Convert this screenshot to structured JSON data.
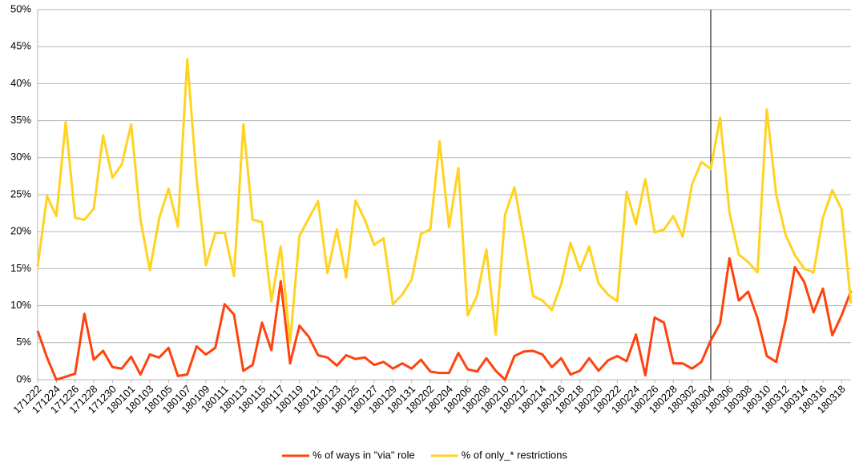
{
  "chart_data": {
    "type": "line",
    "categories": [
      "171222",
      null,
      "171224",
      null,
      "171226",
      null,
      "171228",
      null,
      "171230",
      null,
      "180101",
      null,
      "180103",
      null,
      "180105",
      null,
      "180107",
      null,
      "180109",
      null,
      "180111",
      null,
      "180113",
      null,
      "180115",
      null,
      "180117",
      null,
      "180119",
      null,
      "180121",
      null,
      "180123",
      null,
      "180125",
      null,
      "180127",
      null,
      "180129",
      null,
      "180131",
      null,
      "180202",
      null,
      "180204",
      null,
      "180206",
      null,
      "180208",
      null,
      "180210",
      null,
      "180212",
      null,
      "180214",
      null,
      "180216",
      null,
      "180218",
      null,
      "180220",
      null,
      "180222",
      null,
      "180224",
      null,
      "180226",
      null,
      "180228",
      null,
      "180302",
      null,
      "180304",
      null,
      "180306",
      null,
      "180308",
      null,
      "180310",
      null,
      "180312",
      null,
      "180314",
      null,
      "180316",
      null,
      "180318",
      null
    ],
    "series": [
      {
        "name": "% of ways in \"via\" role",
        "color": "#ff420e",
        "values": [
          6.6,
          3.0,
          0.0,
          0.4,
          0.8,
          8.9,
          2.7,
          3.9,
          1.7,
          1.5,
          3.1,
          0.7,
          3.4,
          3.0,
          4.3,
          0.5,
          0.7,
          4.5,
          3.4,
          4.3,
          10.2,
          8.8,
          1.2,
          2.0,
          7.7,
          4.0,
          13.3,
          2.2,
          7.3,
          5.8,
          3.3,
          3.0,
          1.9,
          3.3,
          2.8,
          3.0,
          2.0,
          2.4,
          1.5,
          2.2,
          1.5,
          2.7,
          1.1,
          0.9,
          0.9,
          3.6,
          1.4,
          1.1,
          2.9,
          1.2,
          0.0,
          3.2,
          3.8,
          3.9,
          3.4,
          1.7,
          2.9,
          0.7,
          1.2,
          2.9,
          1.2,
          2.6,
          3.2,
          2.5,
          6.1,
          0.6,
          8.4,
          7.7,
          2.2,
          2.2,
          1.5,
          2.4,
          5.3,
          7.6,
          16.4,
          10.7,
          11.9,
          8.3,
          3.2,
          2.4,
          8.0,
          15.2,
          13.2,
          9.1,
          12.3,
          6.0,
          8.7,
          12.0
        ]
      },
      {
        "name": "% of only_* restrictions",
        "color": "#ffd320",
        "values": [
          15.3,
          24.8,
          22.1,
          34.8,
          21.9,
          21.6,
          23.1,
          33.0,
          27.3,
          29.1,
          34.5,
          21.6,
          14.8,
          21.8,
          25.8,
          20.7,
          43.3,
          27.2,
          15.5,
          19.8,
          19.9,
          14.0,
          34.5,
          21.6,
          21.3,
          10.6,
          18.0,
          5.0,
          19.4,
          21.8,
          24.1,
          14.4,
          20.3,
          13.8,
          24.2,
          21.6,
          18.2,
          19.1,
          10.2,
          11.5,
          13.5,
          19.7,
          20.3,
          32.2,
          20.6,
          28.6,
          8.7,
          11.3,
          17.6,
          6.1,
          22.3,
          26.0,
          19.1,
          11.3,
          10.7,
          9.4,
          12.9,
          18.5,
          14.8,
          18.0,
          13.0,
          11.5,
          10.6,
          25.4,
          21.0,
          27.1,
          19.9,
          20.3,
          22.1,
          19.3,
          26.4,
          29.4,
          28.5,
          35.4,
          22.6,
          16.9,
          15.9,
          14.5,
          36.5,
          25.0,
          19.6,
          16.8,
          15.0,
          14.5,
          21.9,
          25.6,
          23.0,
          10.3
        ]
      }
    ],
    "ylim": [
      0,
      50
    ],
    "yticks": [
      {
        "value": 0,
        "label": "0%"
      },
      {
        "value": 5,
        "label": "5%"
      },
      {
        "value": 10,
        "label": "10%"
      },
      {
        "value": 15,
        "label": "15%"
      },
      {
        "value": 20,
        "label": "20%"
      },
      {
        "value": 25,
        "label": "25%"
      },
      {
        "value": 30,
        "label": "30%"
      },
      {
        "value": 35,
        "label": "35%"
      },
      {
        "value": 40,
        "label": "40%"
      },
      {
        "value": 45,
        "label": "45%"
      },
      {
        "value": 50,
        "label": "50%"
      }
    ],
    "grid": true,
    "legend": "bottom",
    "vertical_line_at": "180304"
  }
}
